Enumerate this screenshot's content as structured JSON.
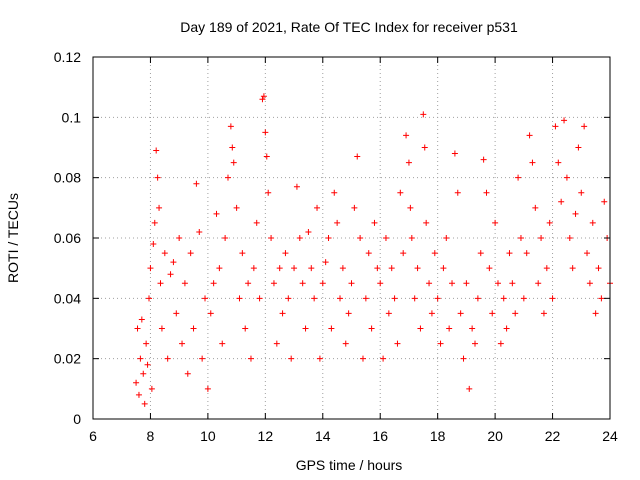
{
  "chart_data": {
    "type": "scatter",
    "title": "Day 189 of 2021, Rate Of TEC Index for receiver p531",
    "xlabel": "GPS time / hours",
    "ylabel": "ROTI / TECUs",
    "xlim": [
      6,
      24
    ],
    "ylim": [
      0,
      0.12
    ],
    "xticks": [
      6,
      8,
      10,
      12,
      14,
      16,
      18,
      20,
      22,
      24
    ],
    "xtick_labels": [
      "6",
      "8",
      "10",
      "12",
      "14",
      "16",
      "18",
      "20",
      "22",
      "24"
    ],
    "yticks": [
      0,
      0.02,
      0.04,
      0.06,
      0.08,
      0.1,
      0.12
    ],
    "ytick_labels": [
      "0",
      "0.02",
      "0.04",
      "0.06",
      "0.08",
      "0.1",
      "0.12"
    ],
    "grid": true,
    "marker": "plus",
    "series": [
      {
        "name": "ROTI",
        "color": "#ff0000",
        "points": [
          [
            7.5,
            0.012
          ],
          [
            7.55,
            0.03
          ],
          [
            7.6,
            0.008
          ],
          [
            7.65,
            0.02
          ],
          [
            7.7,
            0.033
          ],
          [
            7.75,
            0.015
          ],
          [
            7.8,
            0.005
          ],
          [
            7.85,
            0.025
          ],
          [
            7.9,
            0.018
          ],
          [
            7.95,
            0.04
          ],
          [
            8.0,
            0.05
          ],
          [
            8.05,
            0.01
          ],
          [
            8.1,
            0.058
          ],
          [
            8.15,
            0.065
          ],
          [
            8.2,
            0.089
          ],
          [
            8.25,
            0.08
          ],
          [
            8.3,
            0.07
          ],
          [
            8.35,
            0.045
          ],
          [
            8.4,
            0.03
          ],
          [
            8.5,
            0.055
          ],
          [
            8.6,
            0.02
          ],
          [
            8.7,
            0.048
          ],
          [
            8.8,
            0.052
          ],
          [
            8.9,
            0.035
          ],
          [
            9.0,
            0.06
          ],
          [
            9.1,
            0.025
          ],
          [
            9.2,
            0.045
          ],
          [
            9.3,
            0.015
          ],
          [
            9.4,
            0.055
          ],
          [
            9.5,
            0.03
          ],
          [
            9.6,
            0.078
          ],
          [
            9.7,
            0.062
          ],
          [
            9.8,
            0.02
          ],
          [
            9.9,
            0.04
          ],
          [
            10.0,
            0.01
          ],
          [
            10.1,
            0.035
          ],
          [
            10.2,
            0.045
          ],
          [
            10.3,
            0.068
          ],
          [
            10.4,
            0.05
          ],
          [
            10.5,
            0.025
          ],
          [
            10.6,
            0.06
          ],
          [
            10.7,
            0.08
          ],
          [
            10.8,
            0.097
          ],
          [
            10.85,
            0.09
          ],
          [
            10.9,
            0.085
          ],
          [
            11.0,
            0.07
          ],
          [
            11.1,
            0.04
          ],
          [
            11.2,
            0.055
          ],
          [
            11.3,
            0.03
          ],
          [
            11.4,
            0.045
          ],
          [
            11.5,
            0.02
          ],
          [
            11.6,
            0.05
          ],
          [
            11.7,
            0.065
          ],
          [
            11.8,
            0.04
          ],
          [
            11.9,
            0.106
          ],
          [
            11.95,
            0.107
          ],
          [
            12.0,
            0.095
          ],
          [
            12.05,
            0.087
          ],
          [
            12.1,
            0.075
          ],
          [
            12.2,
            0.06
          ],
          [
            12.3,
            0.045
          ],
          [
            12.4,
            0.025
          ],
          [
            12.5,
            0.05
          ],
          [
            12.6,
            0.035
          ],
          [
            12.7,
            0.055
          ],
          [
            12.8,
            0.04
          ],
          [
            12.9,
            0.02
          ],
          [
            13.0,
            0.05
          ],
          [
            13.1,
            0.077
          ],
          [
            13.2,
            0.06
          ],
          [
            13.3,
            0.045
          ],
          [
            13.4,
            0.03
          ],
          [
            13.5,
            0.062
          ],
          [
            13.6,
            0.05
          ],
          [
            13.7,
            0.04
          ],
          [
            13.8,
            0.07
          ],
          [
            13.9,
            0.02
          ],
          [
            14.0,
            0.045
          ],
          [
            14.1,
            0.052
          ],
          [
            14.2,
            0.06
          ],
          [
            14.3,
            0.03
          ],
          [
            14.4,
            0.075
          ],
          [
            14.5,
            0.065
          ],
          [
            14.6,
            0.04
          ],
          [
            14.7,
            0.05
          ],
          [
            14.8,
            0.025
          ],
          [
            14.9,
            0.035
          ],
          [
            15.0,
            0.045
          ],
          [
            15.1,
            0.07
          ],
          [
            15.2,
            0.087
          ],
          [
            15.3,
            0.06
          ],
          [
            15.4,
            0.02
          ],
          [
            15.5,
            0.04
          ],
          [
            15.6,
            0.055
          ],
          [
            15.7,
            0.03
          ],
          [
            15.8,
            0.065
          ],
          [
            15.9,
            0.05
          ],
          [
            16.0,
            0.045
          ],
          [
            16.1,
            0.02
          ],
          [
            16.2,
            0.06
          ],
          [
            16.3,
            0.035
          ],
          [
            16.4,
            0.05
          ],
          [
            16.5,
            0.04
          ],
          [
            16.6,
            0.025
          ],
          [
            16.7,
            0.075
          ],
          [
            16.8,
            0.055
          ],
          [
            16.9,
            0.094
          ],
          [
            17.0,
            0.085
          ],
          [
            17.05,
            0.07
          ],
          [
            17.1,
            0.06
          ],
          [
            17.2,
            0.04
          ],
          [
            17.3,
            0.05
          ],
          [
            17.4,
            0.03
          ],
          [
            17.5,
            0.101
          ],
          [
            17.55,
            0.09
          ],
          [
            17.6,
            0.065
          ],
          [
            17.7,
            0.045
          ],
          [
            17.8,
            0.035
          ],
          [
            17.9,
            0.055
          ],
          [
            18.0,
            0.04
          ],
          [
            18.1,
            0.025
          ],
          [
            18.2,
            0.05
          ],
          [
            18.3,
            0.06
          ],
          [
            18.4,
            0.03
          ],
          [
            18.5,
            0.045
          ],
          [
            18.6,
            0.088
          ],
          [
            18.7,
            0.075
          ],
          [
            18.8,
            0.035
          ],
          [
            18.9,
            0.02
          ],
          [
            19.0,
            0.045
          ],
          [
            19.1,
            0.01
          ],
          [
            19.2,
            0.03
          ],
          [
            19.3,
            0.025
          ],
          [
            19.4,
            0.04
          ],
          [
            19.5,
            0.055
          ],
          [
            19.6,
            0.086
          ],
          [
            19.7,
            0.075
          ],
          [
            19.8,
            0.05
          ],
          [
            19.9,
            0.035
          ],
          [
            20.0,
            0.065
          ],
          [
            20.1,
            0.045
          ],
          [
            20.2,
            0.025
          ],
          [
            20.3,
            0.04
          ],
          [
            20.4,
            0.03
          ],
          [
            20.5,
            0.055
          ],
          [
            20.6,
            0.045
          ],
          [
            20.7,
            0.035
          ],
          [
            20.8,
            0.08
          ],
          [
            20.9,
            0.06
          ],
          [
            21.0,
            0.04
          ],
          [
            21.1,
            0.055
          ],
          [
            21.2,
            0.094
          ],
          [
            21.3,
            0.085
          ],
          [
            21.4,
            0.07
          ],
          [
            21.5,
            0.045
          ],
          [
            21.6,
            0.06
          ],
          [
            21.7,
            0.035
          ],
          [
            21.8,
            0.05
          ],
          [
            21.9,
            0.065
          ],
          [
            22.0,
            0.04
          ],
          [
            22.1,
            0.097
          ],
          [
            22.2,
            0.085
          ],
          [
            22.3,
            0.072
          ],
          [
            22.4,
            0.099
          ],
          [
            22.5,
            0.08
          ],
          [
            22.6,
            0.06
          ],
          [
            22.7,
            0.05
          ],
          [
            22.8,
            0.068
          ],
          [
            22.9,
            0.09
          ],
          [
            23.0,
            0.075
          ],
          [
            23.1,
            0.097
          ],
          [
            23.2,
            0.055
          ],
          [
            23.3,
            0.045
          ],
          [
            23.4,
            0.065
          ],
          [
            23.5,
            0.035
          ],
          [
            23.6,
            0.05
          ],
          [
            23.7,
            0.04
          ],
          [
            23.8,
            0.072
          ],
          [
            23.9,
            0.06
          ],
          [
            24.0,
            0.045
          ]
        ]
      }
    ]
  }
}
